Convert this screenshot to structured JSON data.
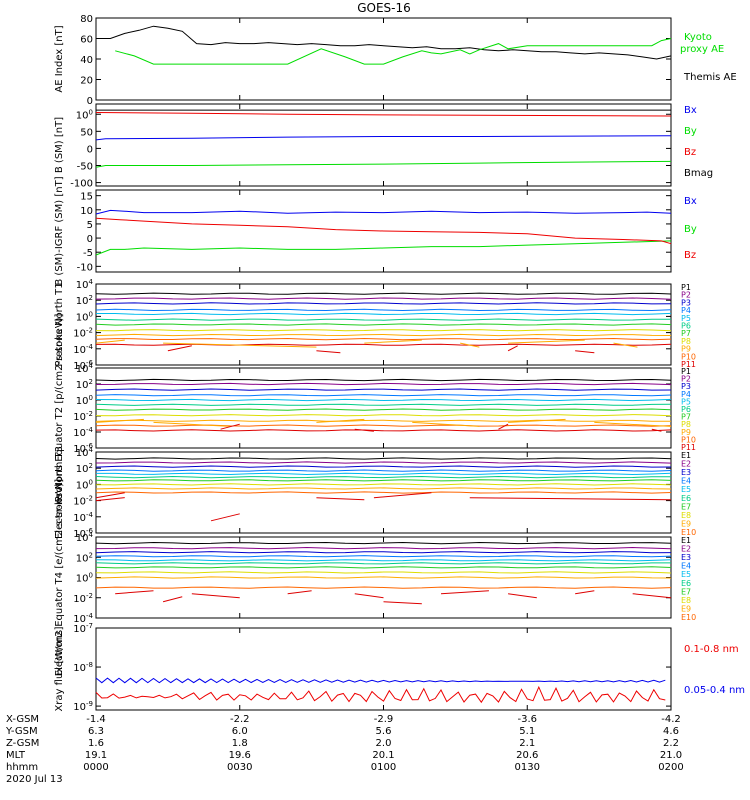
{
  "title": "GOES-16",
  "colors": {
    "black": "#000000",
    "green": "#00dd00",
    "blue": "#0000ee",
    "red": "#ee0000",
    "ch": [
      "#000000",
      "#880088",
      "#0000cc",
      "#0077ff",
      "#00bbee",
      "#00cc88",
      "#22cc22",
      "#dddd00",
      "#ffaa00",
      "#ff6600",
      "#dd0000"
    ]
  },
  "chart_data": [
    {
      "type": "line",
      "panel": "ae",
      "ylabel": "AE Index [nT]",
      "ylim": [
        0,
        80
      ],
      "yticks": [
        "0",
        "20",
        "40",
        "60",
        "80"
      ],
      "scale": "linear",
      "series": [
        {
          "name": "Themis AE",
          "color": "#000000",
          "x": [
            0,
            3,
            6,
            9,
            12,
            15,
            18,
            21,
            24,
            27,
            30,
            33,
            36,
            39,
            42,
            45,
            48,
            51,
            54,
            57,
            60,
            63,
            66,
            69,
            72,
            75,
            78,
            81,
            84,
            87,
            90,
            93,
            96,
            99,
            102,
            105,
            108,
            111,
            114,
            117,
            120
          ],
          "y": [
            60,
            60,
            65,
            68,
            72,
            70,
            67,
            55,
            54,
            56,
            55,
            55,
            56,
            55,
            54,
            55,
            54,
            53,
            53,
            54,
            53,
            52,
            51,
            52,
            50,
            50,
            51,
            49,
            48,
            49,
            48,
            47,
            47,
            46,
            45,
            46,
            45,
            44,
            42,
            40,
            43
          ]
        },
        {
          "name": "Kyoto proxy AE",
          "color": "#00dd00",
          "x": [
            4,
            8,
            12,
            20,
            40,
            47,
            52,
            56,
            60,
            64,
            68,
            70,
            72,
            76,
            78,
            80,
            84,
            86,
            90,
            100,
            110,
            116,
            118,
            120
          ],
          "y": [
            48,
            43,
            35,
            35,
            35,
            50,
            42,
            35,
            35,
            42,
            48,
            46,
            45,
            49,
            45,
            49,
            55,
            50,
            53,
            53,
            53,
            53,
            58,
            60
          ]
        }
      ]
    },
    {
      "type": "line",
      "panel": "b",
      "ylabel": "B (SM) [nT]",
      "ylim": [
        -110,
        130
      ],
      "yticks": [
        "-100",
        "-50",
        "0",
        "50",
        "100"
      ],
      "scale": "linear",
      "series": [
        {
          "name": "Bx",
          "color": "#0000ee",
          "x": [
            0,
            2,
            20,
            40,
            60,
            80,
            100,
            120
          ],
          "y": [
            25,
            28,
            30,
            33,
            35,
            35,
            36,
            37
          ]
        },
        {
          "name": "By",
          "color": "#00dd00",
          "x": [
            0,
            2,
            20,
            40,
            60,
            80,
            100,
            120
          ],
          "y": [
            -55,
            -50,
            -50,
            -48,
            -46,
            -43,
            -40,
            -38
          ]
        },
        {
          "name": "Bz",
          "color": "#ee0000",
          "x": [
            0,
            20,
            40,
            60,
            80,
            100,
            120
          ],
          "y": [
            105,
            103,
            100,
            98,
            97,
            96,
            95
          ]
        },
        {
          "name": "Bmag",
          "color": "#000000",
          "x": [
            0,
            120
          ],
          "y": [
            112,
            112
          ]
        }
      ]
    },
    {
      "type": "line",
      "panel": "bigrf",
      "ylabel": "B (SM)-IGRF (SM) [nT]",
      "ylim": [
        -12,
        17
      ],
      "yticks": [
        "-10",
        "-5",
        "0",
        "5",
        "10",
        "15"
      ],
      "scale": "linear",
      "series": [
        {
          "name": "Bx",
          "color": "#0000ee",
          "x": [
            0,
            3,
            6,
            10,
            20,
            30,
            40,
            50,
            60,
            70,
            80,
            90,
            100,
            110,
            115,
            120
          ],
          "y": [
            8.5,
            9.8,
            9.5,
            9,
            9,
            9.5,
            8.8,
            9.2,
            9,
            9.5,
            9,
            9.2,
            8.8,
            9,
            9.2,
            8.8
          ]
        },
        {
          "name": "By",
          "color": "#00dd00",
          "x": [
            0,
            3,
            6,
            10,
            20,
            30,
            40,
            50,
            60,
            70,
            80,
            90,
            100,
            110,
            120
          ],
          "y": [
            -6,
            -4,
            -4,
            -3.5,
            -4,
            -3.5,
            -4,
            -4,
            -3.5,
            -3,
            -3,
            -2.5,
            -2,
            -1.5,
            -1
          ]
        },
        {
          "name": "Bz",
          "color": "#ee0000",
          "x": [
            0,
            5,
            10,
            20,
            30,
            40,
            50,
            60,
            70,
            80,
            90,
            100,
            110,
            118,
            120
          ],
          "y": [
            7,
            6.5,
            6,
            5,
            4.5,
            4,
            3,
            2.5,
            2.2,
            2,
            1.5,
            0,
            -0.5,
            -1,
            -2
          ]
        }
      ]
    },
    {
      "type": "line",
      "panel": "pn",
      "ylabel": "Protons North T1",
      "ylim": [
        -6,
        4
      ],
      "yticks": [
        "10-6",
        "10-4",
        "10-2",
        "100",
        "102",
        "104"
      ],
      "scale": "log",
      "channels": [
        "P1",
        "P2",
        "P3",
        "P4",
        "P5",
        "P6",
        "P7",
        "P8",
        "P9",
        "P10",
        "P11"
      ],
      "levels": [
        2.8,
        2.2,
        1.6,
        0.8,
        0.3,
        -0.4,
        -1.0,
        -1.7,
        -2.3,
        -2.8,
        -3.5
      ],
      "gaps": [
        [
          -3.3,
          [
            0,
            6,
            14,
            46,
            56,
            68,
            76,
            80,
            86,
            102,
            108,
            113
          ]
        ],
        [
          -4.0,
          [
            15,
            20,
            46,
            51,
            86,
            88,
            100,
            104
          ]
        ]
      ]
    },
    {
      "type": "line",
      "panel": "pe",
      "ylabel": "Protons Equator T2 [p/(cm2-s-sr-keV)]",
      "ylim": [
        -6,
        4
      ],
      "yticks": [
        "10-6",
        "10-4",
        "10-2",
        "100",
        "102",
        "104"
      ],
      "scale": "log",
      "channels": [
        "P1",
        "P2",
        "P3",
        "P4",
        "P5",
        "P6",
        "P7",
        "P8",
        "P9",
        "P10",
        "P11"
      ],
      "levels": [
        2.5,
        2.0,
        1.3,
        0.6,
        0.0,
        -0.6,
        -1.2,
        -1.9,
        -2.6,
        -3.2,
        -3.8
      ],
      "gaps": [
        [
          -2.8,
          [
            0,
            10,
            12,
            28,
            46,
            56,
            66,
            80,
            86,
            98,
            104,
            120
          ]
        ],
        [
          -3.4,
          [
            26,
            30,
            54,
            58,
            84,
            86,
            116,
            118
          ]
        ]
      ]
    },
    {
      "type": "line",
      "panel": "en",
      "ylabel": "Electrons North T3",
      "ylim": [
        -6,
        4
      ],
      "yticks": [
        "10-6",
        "10-4",
        "10-2",
        "100",
        "102",
        "104"
      ],
      "scale": "log",
      "channels": [
        "E1",
        "E2",
        "E3",
        "E4",
        "E5",
        "E6",
        "E7",
        "E8",
        "E9",
        "E10"
      ],
      "levels": [
        3.2,
        2.7,
        2.2,
        1.7,
        1.3,
        0.9,
        0.5,
        0.0,
        -0.5,
        -1.0
      ],
      "gaps": [
        [
          -2.0,
          [
            0,
            6
          ]
        ],
        [
          -1.4,
          [
            0,
            6,
            46,
            56,
            58,
            70,
            78,
            120
          ]
        ],
        [
          -4.0,
          [
            24,
            30
          ]
        ]
      ]
    },
    {
      "type": "line",
      "panel": "ee",
      "ylabel": "Electrons Equator T4 [e/(cm2-s-sr-keV)]",
      "ylim": [
        -4,
        4
      ],
      "yticks": [
        "10-4",
        "10-2",
        "100",
        "102",
        "104"
      ],
      "scale": "log",
      "channels": [
        "E1",
        "E2",
        "E3",
        "E4",
        "E5",
        "E6",
        "E7",
        "E8",
        "E9",
        "E10"
      ],
      "levels": [
        3.4,
        2.9,
        2.5,
        2.1,
        1.7,
        1.4,
        1.0,
        0.5,
        0.0,
        -1.0
      ],
      "gaps": [
        [
          -1.6,
          [
            4,
            12,
            20,
            30,
            40,
            45,
            54,
            60,
            72,
            82,
            86,
            92,
            100,
            104,
            112,
            120
          ]
        ],
        [
          -2.2,
          [
            14,
            18,
            60,
            68
          ]
        ]
      ]
    },
    {
      "type": "line",
      "panel": "xray",
      "ylabel": "Xray flux [W/m2]",
      "ylim": [
        -9.1,
        -7
      ],
      "yticks": [
        "10-9",
        "10-8",
        "10-7"
      ],
      "scale": "log",
      "series": [
        {
          "name": "0.1-0.8 nm",
          "color": "#ee0000"
        },
        {
          "name": "0.05-0.4 nm",
          "color": "#0000ee"
        }
      ]
    }
  ],
  "xaxis": {
    "ticks": [
      "0000",
      "0030",
      "0100",
      "0130",
      "0200"
    ],
    "rows": [
      {
        "label": "X-GSM",
        "values": [
          "-1.4",
          "-2.2",
          "-2.9",
          "-3.6",
          "-4.2"
        ]
      },
      {
        "label": "Y-GSM",
        "values": [
          "6.3",
          "6.0",
          "5.6",
          "5.1",
          "4.6"
        ]
      },
      {
        "label": "Z-GSM",
        "values": [
          "1.6",
          "1.8",
          "2.0",
          "2.1",
          "2.2"
        ]
      },
      {
        "label": "MLT",
        "values": [
          "19.1",
          "19.6",
          "20.1",
          "20.6",
          "21.0"
        ]
      },
      {
        "label": "hhmm",
        "values": [
          "0000",
          "0030",
          "0100",
          "0130",
          "0200"
        ]
      }
    ],
    "date": "2020 Jul 13"
  }
}
